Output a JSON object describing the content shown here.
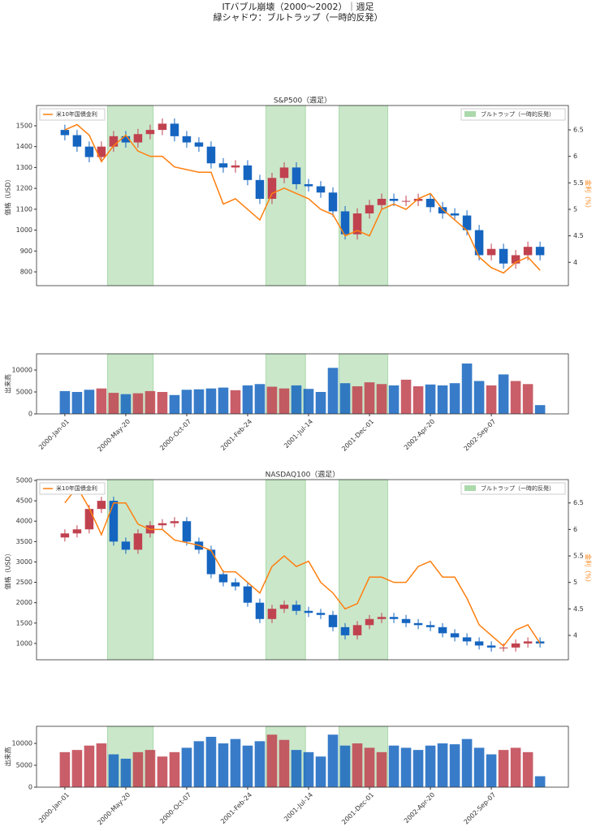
{
  "figure": {
    "title": [
      "ITバブル崩壊（2000〜2002）｜週足",
      "緑シャドウ：ブルトラップ（一時的反発）"
    ]
  },
  "chart_data": [
    {
      "type": "candlestick",
      "title": "S&P500（週足）",
      "ylabel": "価格（USD）",
      "y2label": "金利（%）",
      "x": [
        0,
        4,
        8,
        12,
        16,
        20,
        24,
        28,
        32,
        36,
        40,
        44,
        48,
        52,
        56,
        60,
        64,
        68,
        72,
        76,
        80,
        84,
        88,
        92,
        96,
        100,
        104,
        108,
        112,
        116,
        120,
        124,
        128,
        132,
        136,
        140,
        144,
        148,
        152,
        156
      ],
      "open": [
        1480,
        1455,
        1400,
        1350,
        1400,
        1450,
        1420,
        1460,
        1480,
        1510,
        1450,
        1420,
        1400,
        1320,
        1300,
        1310,
        1240,
        1150,
        1250,
        1300,
        1220,
        1210,
        1180,
        1090,
        980,
        1080,
        1120,
        1150,
        1140,
        1140,
        1150,
        1110,
        1080,
        1070,
        1000,
        880,
        910,
        840,
        880,
        920
      ],
      "high": [
        1505,
        1480,
        1425,
        1425,
        1475,
        1475,
        1485,
        1505,
        1535,
        1535,
        1475,
        1445,
        1425,
        1345,
        1335,
        1335,
        1265,
        1275,
        1325,
        1325,
        1245,
        1235,
        1205,
        1115,
        1105,
        1145,
        1175,
        1175,
        1165,
        1175,
        1175,
        1135,
        1105,
        1095,
        1025,
        935,
        935,
        905,
        945,
        945
      ],
      "low": [
        1430,
        1375,
        1325,
        1325,
        1375,
        1395,
        1395,
        1435,
        1455,
        1425,
        1395,
        1375,
        1295,
        1275,
        1275,
        1215,
        1125,
        1125,
        1225,
        1195,
        1185,
        1155,
        1065,
        955,
        955,
        1055,
        1095,
        1115,
        1115,
        1115,
        1085,
        1055,
        1045,
        975,
        855,
        855,
        815,
        815,
        855,
        855
      ],
      "close": [
        1455,
        1400,
        1350,
        1400,
        1450,
        1420,
        1460,
        1480,
        1510,
        1450,
        1420,
        1400,
        1320,
        1300,
        1310,
        1240,
        1150,
        1250,
        1300,
        1220,
        1210,
        1180,
        1090,
        980,
        1080,
        1120,
        1150,
        1140,
        1140,
        1150,
        1110,
        1080,
        1070,
        1000,
        880,
        910,
        840,
        880,
        920,
        880
      ],
      "up_color": "#c0424f",
      "down_color": "#1565c0",
      "series": [
        {
          "name": "米10年国債金利",
          "color": "#ff7f0e",
          "axis": "y2",
          "values": [
            6.5,
            6.6,
            6.4,
            5.9,
            6.2,
            6.4,
            6.1,
            6.0,
            6.0,
            5.8,
            5.75,
            5.7,
            5.7,
            5.1,
            5.2,
            5.0,
            4.8,
            5.3,
            5.4,
            5.3,
            5.2,
            5.0,
            4.9,
            4.5,
            4.6,
            4.5,
            5.0,
            5.1,
            5.0,
            5.2,
            5.3,
            5.0,
            4.8,
            4.6,
            4.1,
            3.9,
            3.8,
            4.0,
            4.1,
            3.85
          ]
        }
      ],
      "xlim": [
        -9.3,
        165.3
      ],
      "ylim": [
        734,
        1597
      ],
      "yticks": [
        800,
        900,
        1000,
        1100,
        1200,
        1300,
        1400,
        1500
      ],
      "y2lim": [
        3.56,
        6.96
      ],
      "y2ticks": [
        4.0,
        4.5,
        5.0,
        5.5,
        6.0,
        6.5
      ],
      "shades": [
        [
          14,
          29
        ],
        [
          66,
          79
        ],
        [
          90,
          106
        ]
      ],
      "shade_label": "ブルトラップ（一時的反発）",
      "shade_color": "#2ca02c",
      "legend": "upper left",
      "shade_legend": "upper right"
    },
    {
      "type": "bar",
      "ylabel": "出来高",
      "x": [
        0,
        4,
        8,
        12,
        16,
        20,
        24,
        28,
        32,
        36,
        40,
        44,
        48,
        52,
        56,
        60,
        64,
        68,
        72,
        76,
        80,
        84,
        88,
        92,
        96,
        100,
        104,
        108,
        112,
        116,
        120,
        124,
        128,
        132,
        136,
        140,
        144,
        148,
        152,
        156
      ],
      "values": [
        5200,
        5000,
        5500,
        5800,
        4800,
        4500,
        4700,
        5200,
        5000,
        4300,
        5500,
        5600,
        5800,
        6000,
        5400,
        6500,
        6800,
        6200,
        5800,
        6500,
        5700,
        5000,
        10500,
        7000,
        6300,
        7200,
        6800,
        6500,
        7800,
        6300,
        6700,
        6500,
        7000,
        11500,
        7500,
        6500,
        9000,
        7500,
        6800,
        2000
      ],
      "xlim": [
        -9.3,
        165.3
      ],
      "ylim": [
        0,
        13700
      ],
      "yticks": [
        0,
        5000,
        10000
      ],
      "xticks": [
        {
          "value": 0,
          "label": "2000-Jan-01"
        },
        {
          "value": 20,
          "label": "2000-May-20"
        },
        {
          "value": 40,
          "label": "2000-Oct-07"
        },
        {
          "value": 60,
          "label": "2001-Feb-24"
        },
        {
          "value": 80,
          "label": "2001-Jul-14"
        },
        {
          "value": 100,
          "label": "2001-Dec-01"
        },
        {
          "value": 120,
          "label": "2002-Apr-20"
        },
        {
          "value": 140,
          "label": "2002-Sep-07"
        }
      ],
      "shades": [
        [
          14,
          29
        ],
        [
          66,
          79
        ],
        [
          90,
          106
        ]
      ],
      "shade_color": "#2ca02c"
    },
    {
      "type": "candlestick",
      "title": "NASDAQ100（週足）",
      "ylabel": "価格（USD）",
      "y2label": "金利（%）",
      "x": [
        0,
        4,
        8,
        12,
        16,
        20,
        24,
        28,
        32,
        36,
        40,
        44,
        48,
        52,
        56,
        60,
        64,
        68,
        72,
        76,
        80,
        84,
        88,
        92,
        96,
        100,
        104,
        108,
        112,
        116,
        120,
        124,
        128,
        132,
        136,
        140,
        144,
        148,
        152,
        156
      ],
      "open": [
        3600,
        3700,
        3800,
        4300,
        4500,
        3500,
        3300,
        3700,
        3900,
        3950,
        4000,
        3500,
        3300,
        2700,
        2500,
        2400,
        2000,
        1600,
        1850,
        1950,
        1800,
        1750,
        1700,
        1400,
        1200,
        1450,
        1600,
        1650,
        1600,
        1500,
        1450,
        1400,
        1250,
        1150,
        1050,
        950,
        900,
        900,
        1000,
        1050
      ],
      "high": [
        3800,
        3900,
        4400,
        4600,
        4600,
        3600,
        3800,
        4000,
        4050,
        4100,
        4100,
        3600,
        3400,
        2800,
        2600,
        2500,
        2100,
        1950,
        2050,
        2050,
        1900,
        1850,
        1800,
        1500,
        1550,
        1700,
        1750,
        1750,
        1700,
        1600,
        1550,
        1500,
        1350,
        1250,
        1150,
        1050,
        1000,
        1100,
        1150,
        1150
      ],
      "low": [
        3500,
        3600,
        3700,
        4200,
        3400,
        3200,
        3200,
        3600,
        3800,
        3850,
        3400,
        3200,
        2600,
        2400,
        2300,
        1900,
        1500,
        1500,
        1750,
        1700,
        1650,
        1600,
        1300,
        1100,
        1100,
        1350,
        1500,
        1500,
        1400,
        1350,
        1300,
        1150,
        1050,
        950,
        850,
        800,
        800,
        800,
        900,
        900
      ],
      "close": [
        3700,
        3800,
        4300,
        4500,
        3500,
        3300,
        3700,
        3900,
        3950,
        4000,
        3500,
        3300,
        2700,
        2500,
        2400,
        2000,
        1600,
        1850,
        1950,
        1800,
        1750,
        1700,
        1400,
        1200,
        1450,
        1600,
        1650,
        1600,
        1500,
        1450,
        1400,
        1250,
        1150,
        1050,
        950,
        900,
        900,
        1000,
        1050,
        1000
      ],
      "up_color": "#c0424f",
      "down_color": "#1565c0",
      "series": [
        {
          "name": "米10年国債金利",
          "color": "#ff7f0e",
          "axis": "y2",
          "values": [
            6.5,
            6.8,
            6.4,
            5.9,
            6.5,
            6.5,
            6.1,
            6.0,
            6.0,
            5.8,
            5.75,
            5.7,
            5.6,
            5.2,
            5.2,
            5.0,
            4.8,
            5.3,
            5.5,
            5.3,
            5.4,
            5.0,
            4.8,
            4.5,
            4.6,
            5.1,
            5.1,
            5.0,
            5.0,
            5.3,
            5.4,
            5.1,
            5.1,
            4.7,
            4.2,
            4.0,
            3.8,
            4.1,
            4.2,
            3.85
          ]
        }
      ],
      "xlim": [
        -9.3,
        165.3
      ],
      "ylim": [
        600,
        5020
      ],
      "yticks": [
        1000,
        1500,
        2000,
        2500,
        3000,
        3500,
        4000,
        4500,
        5000
      ],
      "y2lim": [
        3.54,
        6.94
      ],
      "y2ticks": [
        4.0,
        4.5,
        5.0,
        5.5,
        6.0,
        6.5
      ],
      "shades": [
        [
          14,
          29
        ],
        [
          66,
          79
        ],
        [
          90,
          106
        ]
      ],
      "shade_label": "ブルトラップ（一時的反発）",
      "shade_color": "#2ca02c",
      "legend": "upper left",
      "shade_legend": "upper right"
    },
    {
      "type": "bar",
      "ylabel": "出来高",
      "x": [
        0,
        4,
        8,
        12,
        16,
        20,
        24,
        28,
        32,
        36,
        40,
        44,
        48,
        52,
        56,
        60,
        64,
        68,
        72,
        76,
        80,
        84,
        88,
        92,
        96,
        100,
        104,
        108,
        112,
        116,
        120,
        124,
        128,
        132,
        136,
        140,
        144,
        148,
        152,
        156
      ],
      "values": [
        8000,
        8500,
        9500,
        10000,
        7500,
        6500,
        8000,
        8500,
        7000,
        8000,
        9000,
        10500,
        11500,
        10000,
        11000,
        9500,
        10500,
        12000,
        10800,
        8500,
        8000,
        7000,
        12000,
        9500,
        10000,
        9000,
        8000,
        9500,
        9000,
        8500,
        9500,
        10000,
        9800,
        11000,
        9000,
        7500,
        8500,
        9000,
        8000,
        2500
      ],
      "xlim": [
        -9.3,
        165.3
      ],
      "ylim": [
        0,
        13900
      ],
      "yticks": [
        0,
        5000,
        10000
      ],
      "xticks": [
        {
          "value": 0,
          "label": "2000-Jan-01"
        },
        {
          "value": 20,
          "label": "2000-May-20"
        },
        {
          "value": 40,
          "label": "2000-Oct-07"
        },
        {
          "value": 60,
          "label": "2001-Feb-24"
        },
        {
          "value": 80,
          "label": "2001-Jul-14"
        },
        {
          "value": 100,
          "label": "2001-Dec-01"
        },
        {
          "value": 120,
          "label": "2002-Apr-20"
        },
        {
          "value": 140,
          "label": "2002-Sep-07"
        }
      ],
      "shades": [
        [
          14,
          29
        ],
        [
          66,
          79
        ],
        [
          90,
          106
        ]
      ],
      "shade_color": "#2ca02c"
    }
  ]
}
